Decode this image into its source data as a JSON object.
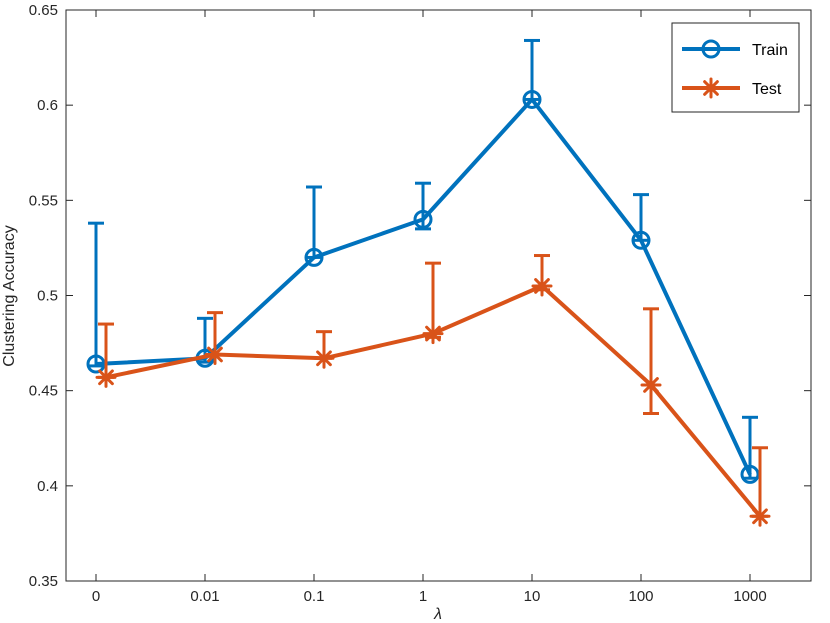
{
  "chart_data": {
    "type": "line",
    "title": "",
    "xlabel": "λ",
    "ylabel": "Clustering Accuracy",
    "categories": [
      "0",
      "0.01",
      "0.1",
      "1",
      "10",
      "100",
      "1000"
    ],
    "ylim": [
      0.35,
      0.65
    ],
    "yticks": [
      "0.35",
      "0.4",
      "0.45",
      "0.5",
      "0.55",
      "0.6",
      "0.65"
    ],
    "grid": false,
    "legend_position": "top-right",
    "series": [
      {
        "name": "Train",
        "color": "#0072BD",
        "marker": "circle",
        "values": [
          0.464,
          0.467,
          0.52,
          0.54,
          0.603,
          0.529,
          0.406
        ],
        "error_low": [
          0.463,
          0.465,
          0.52,
          0.535,
          0.603,
          0.529,
          0.404
        ],
        "error_high": [
          0.538,
          0.488,
          0.557,
          0.559,
          0.634,
          0.553,
          0.436
        ]
      },
      {
        "name": "Test",
        "color": "#D95319",
        "marker": "asterisk",
        "values": [
          0.457,
          0.469,
          0.467,
          0.48,
          0.505,
          0.453,
          0.384
        ],
        "error_low": [
          0.457,
          0.469,
          0.467,
          0.478,
          0.503,
          0.438,
          0.384
        ],
        "error_high": [
          0.485,
          0.491,
          0.481,
          0.517,
          0.521,
          0.493,
          0.42
        ]
      }
    ]
  }
}
